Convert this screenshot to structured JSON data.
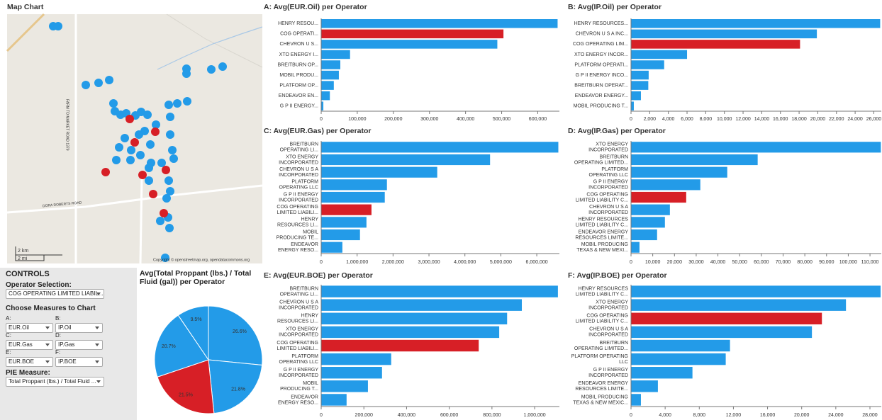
{
  "map": {
    "title": "Map Chart",
    "scale_km": "2 km",
    "scale_mi": "2 mi",
    "road_1": "DORA ROBERTS ROAD",
    "road_2": "FARM TO MARKET ROAD 1379",
    "copyright": "Copyright © openstreetmap.org, opendatacommons.org"
  },
  "controls": {
    "title": "CONTROLS",
    "operator_label": "Operator Selection:",
    "operator_value": "COG OPERATING LIMITED LIABIL...",
    "measures_label": "Choose Measures to Chart",
    "measures": [
      {
        "label": "A:",
        "value": "EUR.Oil"
      },
      {
        "label": "B:",
        "value": "IP.Oil"
      },
      {
        "label": "C:",
        "value": "EUR.Gas"
      },
      {
        "label": "D:",
        "value": "IP.Gas"
      },
      {
        "label": "E:",
        "value": "EUR.BOE"
      },
      {
        "label": "F:",
        "value": "IP.BOE"
      }
    ],
    "pie_label": "PIE Measure:",
    "pie_value": "Total Proppant (lbs.) / Total Fluid ..."
  },
  "chart_data": [
    {
      "type": "pie",
      "title": "Avg(Total Proppant (lbs.) / Total Fluid (gal)) per Operator",
      "values": [
        26.6,
        21.8,
        21.5,
        20.7,
        9.5
      ],
      "value_labels": [
        "26.6%",
        "21.8%",
        "21.5%",
        "20.7%",
        "9.5%"
      ],
      "colors": [
        "#239be8",
        "#239be8",
        "#d71f26",
        "#239be8",
        "#239be8"
      ]
    },
    {
      "type": "bar",
      "title": "A: Avg(EUR.Oil) per Operator",
      "categories": [
        [
          "HENRY RESOU..."
        ],
        [
          "COG OPERATI..."
        ],
        [
          "CHEVRON U S..."
        ],
        [
          "XTO ENERGY I..."
        ],
        [
          "BREITBURN OP..."
        ],
        [
          "MOBIL PRODU..."
        ],
        [
          "PLATFORM OP..."
        ],
        [
          "ENDEAVOR EN..."
        ],
        [
          "G P II ENERGY..."
        ]
      ],
      "values": [
        655000,
        505000,
        488000,
        80000,
        53000,
        49000,
        35000,
        24000,
        6000
      ],
      "colors": [
        "#239be8",
        "#d71f26",
        "#239be8",
        "#239be8",
        "#239be8",
        "#239be8",
        "#239be8",
        "#239be8",
        "#239be8"
      ],
      "xlim": [
        0,
        660000
      ],
      "xticks": [
        0,
        {
          "value": 100000,
          "label": "100,000"
        },
        {
          "value": 200000,
          "label": "200,000"
        },
        {
          "value": 300000,
          "label": "300,000"
        },
        {
          "value": 400000,
          "label": "400,000"
        },
        {
          "value": 500000,
          "label": "500,000"
        },
        {
          "value": 600000,
          "label": "600,000"
        }
      ]
    },
    {
      "type": "bar",
      "title": "B: Avg(IP.Oil) per Operator",
      "categories": [
        [
          "HENRY RESOURCES..."
        ],
        [
          "CHEVRON U S A INC..."
        ],
        [
          "COG OPERATING LIM..."
        ],
        [
          "XTO ENERGY INCOR..."
        ],
        [
          "PLATFORM OPERATI..."
        ],
        [
          "G P II ENERGY INCO..."
        ],
        [
          "BREITBURN OPERAT..."
        ],
        [
          "ENDEAVOR ENERGY..."
        ],
        [
          "MOBIL PRODUCING T..."
        ]
      ],
      "values": [
        26680,
        19900,
        18100,
        6000,
        3550,
        1890,
        1850,
        1060,
        300
      ],
      "colors": [
        "#239be8",
        "#239be8",
        "#d71f26",
        "#239be8",
        "#239be8",
        "#239be8",
        "#239be8",
        "#239be8",
        "#239be8"
      ],
      "xlim": [
        0,
        26800
      ],
      "xticks": [
        0,
        {
          "value": 2000,
          "label": "2,000"
        },
        {
          "value": 4000,
          "label": "4,000"
        },
        {
          "value": 6000,
          "label": "6,000"
        },
        {
          "value": 8000,
          "label": "8,000"
        },
        {
          "value": 10000,
          "label": "10,000"
        },
        {
          "value": 12000,
          "label": "12,000"
        },
        {
          "value": 14000,
          "label": "14,000"
        },
        {
          "value": 16000,
          "label": "16,000"
        },
        {
          "value": 18000,
          "label": "18,000"
        },
        {
          "value": 20000,
          "label": "20,000"
        },
        {
          "value": 22000,
          "label": "22,000"
        },
        {
          "value": 24000,
          "label": "24,000"
        },
        {
          "value": 26000,
          "label": "26,000"
        }
      ]
    },
    {
      "type": "bar",
      "title": "C: Avg(EUR.Gas) per Operator",
      "categories": [
        [
          "BREITBURN",
          "OPERATING LI..."
        ],
        [
          "XTO ENERGY",
          "INCORPORATED"
        ],
        [
          "CHEVRON U S A",
          "INCORPORATED"
        ],
        [
          "PLATFORM",
          "OPERATING LLC"
        ],
        [
          "G P II ENERGY",
          "INCORPORATED"
        ],
        [
          "COG OPERATING",
          "LIMITED LIABILI..."
        ],
        [
          "HENRY",
          "RESOURCES LI..."
        ],
        [
          "MOBIL",
          "PRODUCING TE..."
        ],
        [
          "ENDEAVOR",
          "ENERGY RESO..."
        ]
      ],
      "values": [
        6600000,
        4700000,
        3230000,
        1830000,
        1770000,
        1400000,
        1260000,
        1080000,
        590000
      ],
      "colors": [
        "#239be8",
        "#239be8",
        "#239be8",
        "#239be8",
        "#239be8",
        "#d71f26",
        "#239be8",
        "#239be8",
        "#239be8"
      ],
      "xlim": [
        0,
        6630000
      ],
      "xticks": [
        0,
        {
          "value": 1000000,
          "label": "1,000,000"
        },
        {
          "value": 2000000,
          "label": "2,000,000"
        },
        {
          "value": 3000000,
          "label": "3,000,000"
        },
        {
          "value": 4000000,
          "label": "4,000,000"
        },
        {
          "value": 5000000,
          "label": "5,000,000"
        },
        {
          "value": 6000000,
          "label": "6,000,000"
        }
      ]
    },
    {
      "type": "bar",
      "title": "D: Avg(IP.Gas) per Operator",
      "categories": [
        [
          "XTO ENERGY",
          "INCORPORATED"
        ],
        [
          "BREITBURN",
          "OPERATING LIMITED..."
        ],
        [
          "PLATFORM",
          "OPERATING LLC"
        ],
        [
          "G P II ENERGY",
          "INCORPORATED"
        ],
        [
          "COG OPERATING",
          "LIMITED LIABILITY C..."
        ],
        [
          "CHEVRON U S A",
          "INCORPORATED"
        ],
        [
          "HENRY RESOURCES",
          "LIMITED LIABILITY C..."
        ],
        [
          "ENDEAVOR ENERGY",
          "RESOURCES LIMITE..."
        ],
        [
          "MOBIL PRODUCING",
          "TEXAS & NEW MEXI..."
        ]
      ],
      "values": [
        115000,
        58300,
        44300,
        31900,
        25400,
        17900,
        15600,
        12000,
        3900
      ],
      "colors": [
        "#239be8",
        "#239be8",
        "#239be8",
        "#239be8",
        "#d71f26",
        "#239be8",
        "#239be8",
        "#239be8",
        "#239be8"
      ],
      "xlim": [
        0,
        115200
      ],
      "xticks": [
        0,
        {
          "value": 10000,
          "label": "10,000"
        },
        {
          "value": 20000,
          "label": "20,000"
        },
        {
          "value": 30000,
          "label": "30,000"
        },
        {
          "value": 40000,
          "label": "40,000"
        },
        {
          "value": 50000,
          "label": "50,000"
        },
        {
          "value": 60000,
          "label": "60,000"
        },
        {
          "value": 70000,
          "label": "70,000"
        },
        {
          "value": 80000,
          "label": "80,000"
        },
        {
          "value": 90000,
          "label": "90,000"
        },
        {
          "value": 100000,
          "label": "100,000"
        },
        {
          "value": 110000,
          "label": "110,000"
        }
      ]
    },
    {
      "type": "bar",
      "title": "E: Avg(EUR.BOE) per Operator",
      "categories": [
        [
          "BREITBURN",
          "OPERATING LI..."
        ],
        [
          "CHEVRON U S A",
          "INCORPORATED"
        ],
        [
          "HENRY",
          "RESOURCES LI..."
        ],
        [
          "XTO ENERGY",
          "INCORPORATED"
        ],
        [
          "COG OPERATING",
          "LIMITED LIABILI..."
        ],
        [
          "PLATFORM",
          "OPERATING LLC"
        ],
        [
          "G P II ENERGY",
          "INCORPORATED"
        ],
        [
          "MOBIL",
          "PRODUCING T..."
        ],
        [
          "ENDEAVOR",
          "ENERGY RESO..."
        ]
      ],
      "values": [
        1109000,
        940000,
        871000,
        834000,
        738000,
        328000,
        285000,
        219000,
        119000
      ],
      "colors": [
        "#239be8",
        "#239be8",
        "#239be8",
        "#239be8",
        "#d71f26",
        "#239be8",
        "#239be8",
        "#239be8",
        "#239be8"
      ],
      "xlim": [
        0,
        1116000
      ],
      "xticks": [
        0,
        {
          "value": 200000,
          "label": "200,000"
        },
        {
          "value": 400000,
          "label": "400,000"
        },
        {
          "value": 600000,
          "label": "600,000"
        },
        {
          "value": 800000,
          "label": "800,000"
        },
        {
          "value": 1000000,
          "label": "1,000,000"
        }
      ]
    },
    {
      "type": "bar",
      "title": "F: Avg(IP.BOE) per Operator",
      "categories": [
        [
          "HENRY RESOURCES",
          "LIMITED LIABILITY C..."
        ],
        [
          "XTO ENERGY",
          "INCORPORATED"
        ],
        [
          "COG OPERATING",
          "LIMITED LIABILITY C..."
        ],
        [
          "CHEVRON U S A",
          "INCORPORATED"
        ],
        [
          "BREITBURN",
          "OPERATING LIMITED..."
        ],
        [
          "PLATFORM OPERATING",
          "LLC"
        ],
        [
          "G P II ENERGY",
          "INCORPORATED"
        ],
        [
          "ENDEAVOR ENERGY",
          "RESOURCES LIMITE..."
        ],
        [
          "MOBIL PRODUCING",
          "TEXAS & NEW MEXIC..."
        ]
      ],
      "values": [
        29250,
        25190,
        22370,
        21200,
        11600,
        11100,
        7200,
        3150,
        1160
      ],
      "colors": [
        "#239be8",
        "#239be8",
        "#d71f26",
        "#239be8",
        "#239be8",
        "#239be8",
        "#239be8",
        "#239be8",
        "#239be8"
      ],
      "xlim": [
        0,
        29330
      ],
      "xticks": [
        0,
        {
          "value": 4000,
          "label": "4,000"
        },
        {
          "value": 8000,
          "label": "8,000"
        },
        {
          "value": 12000,
          "label": "12,000"
        },
        {
          "value": 16000,
          "label": "16,000"
        },
        {
          "value": 20000,
          "label": "20,000"
        },
        {
          "value": 24000,
          "label": "24,000"
        },
        {
          "value": 28000,
          "label": "28,000"
        }
      ]
    }
  ]
}
